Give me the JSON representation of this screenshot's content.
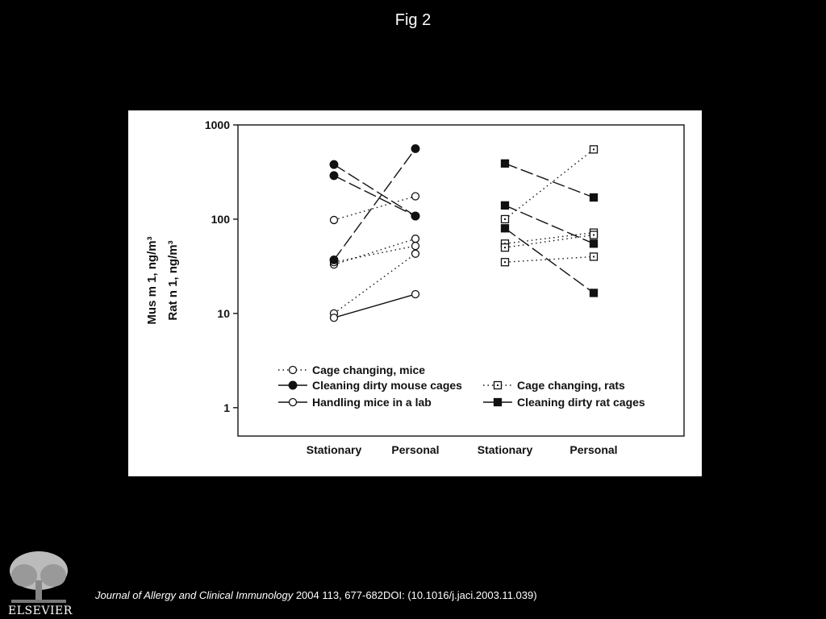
{
  "slide": {
    "title": "Fig 2",
    "citation_journal": "Journal of Allergy and Clinical Immunology",
    "citation_rest": " 2004 113, 677-682DOI: (10.1016/j.jaci.2003.11.039)",
    "logo_text": "ELSEVIER",
    "logo_icon": "tree-icon"
  },
  "chart_data": {
    "type": "line",
    "ylabel_lines": [
      "Mus m 1, ng/m³",
      "Rat n 1, ng/m³"
    ],
    "y_scale": "log",
    "ylim": [
      0.5,
      1000
    ],
    "y_ticks": [
      1,
      10,
      100,
      1000
    ],
    "y_tick_labels": [
      "1",
      "10",
      "100",
      "1000"
    ],
    "categories": [
      "Stationary",
      "Personal",
      "Stationary",
      "Personal"
    ],
    "grid": false,
    "legend_position": "bottom-inside",
    "legend": [
      {
        "label": "Cage changing, mice",
        "style": "dotted",
        "marker": "open-circle"
      },
      {
        "label": "Cleaning dirty mouse cages",
        "style": "long-dash",
        "marker": "filled-circle"
      },
      {
        "label": "Handling mice in a lab",
        "style": "solid",
        "marker": "open-circle"
      },
      {
        "label": "Cage changing, rats",
        "style": "dotted",
        "marker": "open-square"
      },
      {
        "label": "Cleaning dirty rat cages",
        "style": "long-dash",
        "marker": "filled-square"
      }
    ],
    "groups": [
      {
        "category_indices": [
          0,
          1
        ],
        "series": [
          {
            "legend_index": 0,
            "pairs": [
              [
                98,
                175
              ],
              [
                33,
                62
              ],
              [
                35,
                52
              ],
              [
                10,
                43
              ]
            ]
          },
          {
            "legend_index": 1,
            "pairs": [
              [
                380,
                108
              ],
              [
                290,
                108
              ],
              [
                37,
                560
              ]
            ]
          },
          {
            "legend_index": 2,
            "pairs": [
              [
                9,
                16
              ]
            ]
          }
        ]
      },
      {
        "category_indices": [
          2,
          3
        ],
        "series": [
          {
            "legend_index": 3,
            "pairs": [
              [
                100,
                550
              ],
              [
                55,
                72
              ],
              [
                50,
                68
              ],
              [
                35,
                40
              ]
            ]
          },
          {
            "legend_index": 4,
            "pairs": [
              [
                390,
                170
              ],
              [
                140,
                55
              ],
              [
                80,
                16.5
              ]
            ]
          }
        ]
      }
    ]
  }
}
